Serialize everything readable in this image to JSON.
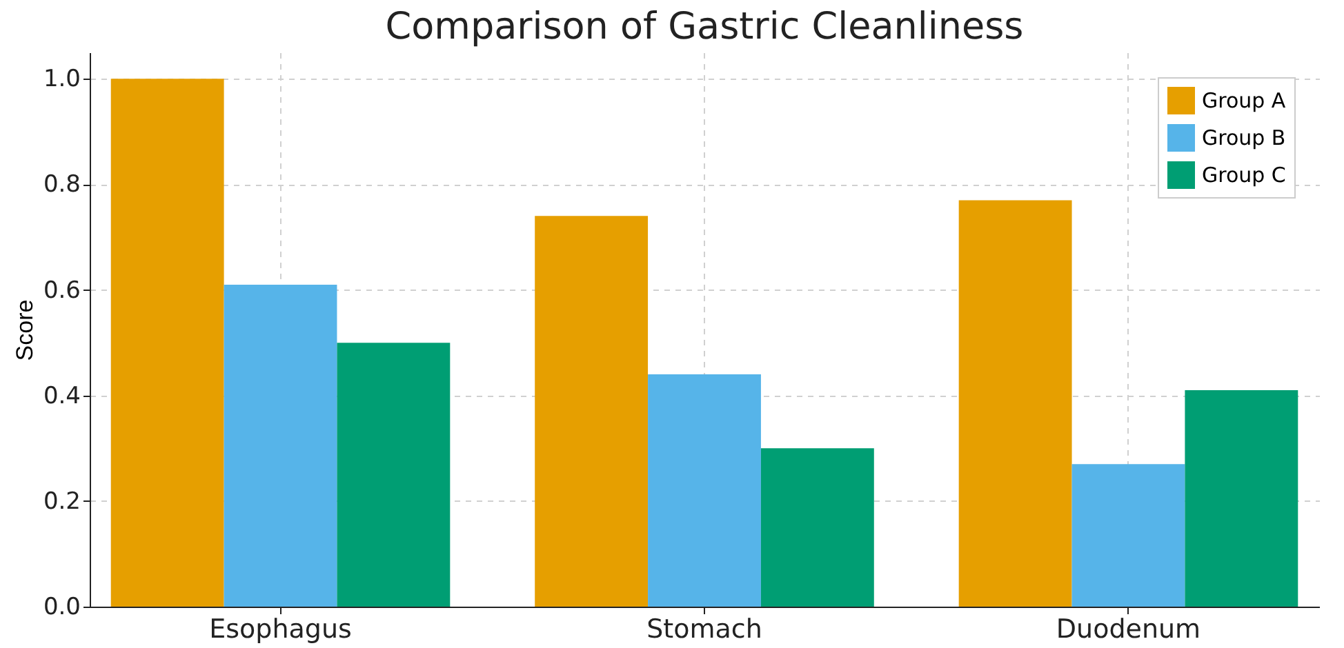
{
  "chart_data": {
    "type": "bar",
    "title": "Comparison of Gastric Cleanliness",
    "ylabel": "Score",
    "categories": [
      "Esophagus",
      "Stomach",
      "Duodenum"
    ],
    "series": [
      {
        "name": "Group A",
        "color": "#e69f00",
        "values": [
          1.0,
          0.74,
          0.77
        ]
      },
      {
        "name": "Group B",
        "color": "#56b4e9",
        "values": [
          0.61,
          0.44,
          0.27
        ]
      },
      {
        "name": "Group C",
        "color": "#009e73",
        "values": [
          0.5,
          0.3,
          0.41
        ]
      }
    ],
    "ylim": [
      0,
      1.05
    ],
    "yticks": [
      {
        "value": 0,
        "label": "0.0"
      },
      0.2,
      0.4,
      0.6,
      0.8,
      {
        "value": 1,
        "label": "1.0"
      }
    ],
    "grid": true,
    "legend": "top right"
  }
}
